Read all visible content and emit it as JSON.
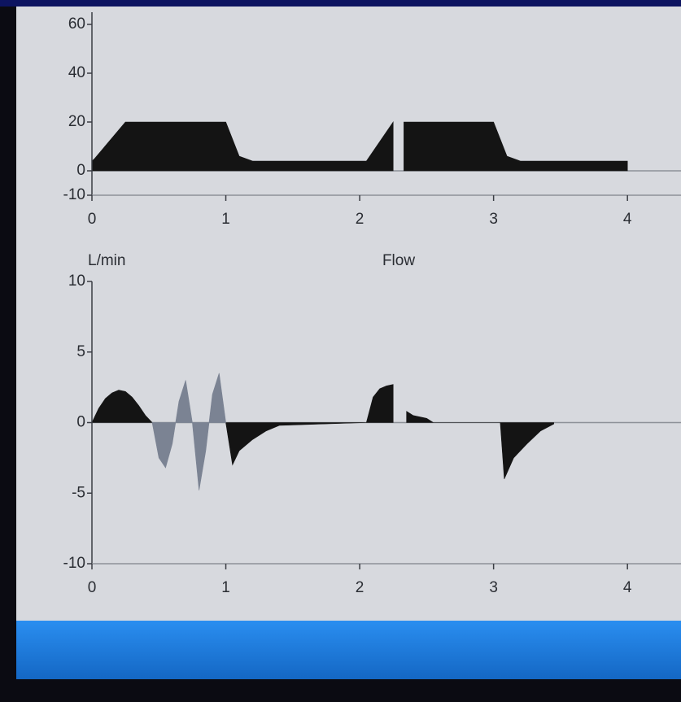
{
  "chart_data": [
    {
      "type": "area",
      "x": [
        0,
        0.02,
        0.25,
        1.0,
        1.1,
        1.2,
        2.05,
        2.25,
        2.28,
        2.33,
        3.0,
        3.1,
        3.2,
        4.0
      ],
      "series": [
        {
          "color": "#141414",
          "values": [
            4,
            5,
            20,
            20,
            6,
            4,
            4,
            20,
            null,
            20,
            20,
            6,
            4,
            4
          ]
        }
      ],
      "xlim": [
        0,
        4.4
      ],
      "xticks": [
        0,
        1,
        2,
        3,
        4
      ],
      "ylim": [
        -10,
        65
      ],
      "yticks": [
        -10,
        0,
        20,
        40,
        60
      ]
    },
    {
      "type": "area",
      "title": "Flow",
      "ylabel": "L/min",
      "x": [
        0,
        0.05,
        0.1,
        0.15,
        0.2,
        0.25,
        0.3,
        0.35,
        0.4,
        0.45,
        0.5,
        0.55,
        0.6,
        0.65,
        0.7,
        0.75,
        0.8,
        0.85,
        0.9,
        0.95,
        1.0,
        1.05,
        1.1,
        1.2,
        1.3,
        1.4,
        2.05,
        2.1,
        2.15,
        2.2,
        2.25,
        2.3,
        2.35,
        2.4,
        2.5,
        2.55,
        3.05,
        3.08,
        3.15,
        3.25,
        3.35,
        3.45
      ],
      "series": [
        {
          "color": "#141414",
          "values": [
            0,
            1,
            1.7,
            2.1,
            2.3,
            2.2,
            1.8,
            1.2,
            0.5,
            0,
            null,
            null,
            null,
            null,
            null,
            null,
            null,
            null,
            null,
            null,
            0,
            -3,
            -2,
            -1.2,
            -0.6,
            -0.2,
            0,
            1.8,
            2.4,
            2.6,
            2.7,
            null,
            0.8,
            0.5,
            0.3,
            0,
            0,
            -4,
            -2.5,
            -1.5,
            -0.6,
            -0.1
          ]
        },
        {
          "color": "#7b8393",
          "values": [
            null,
            null,
            null,
            null,
            null,
            null,
            null,
            null,
            null,
            0,
            -2.5,
            -3.2,
            -1.5,
            1.5,
            3,
            0,
            -4.8,
            -2,
            2,
            3.5,
            0,
            null,
            null,
            null,
            null,
            null,
            null,
            null,
            null,
            null,
            null,
            null,
            null,
            null,
            null,
            null,
            null,
            null,
            null,
            null,
            null,
            null
          ]
        }
      ],
      "xlim": [
        0,
        4.4
      ],
      "xticks": [
        0,
        1,
        2,
        3,
        4
      ],
      "ylim": [
        -10,
        10
      ],
      "yticks": [
        -10,
        -5,
        0,
        5,
        10
      ]
    }
  ]
}
